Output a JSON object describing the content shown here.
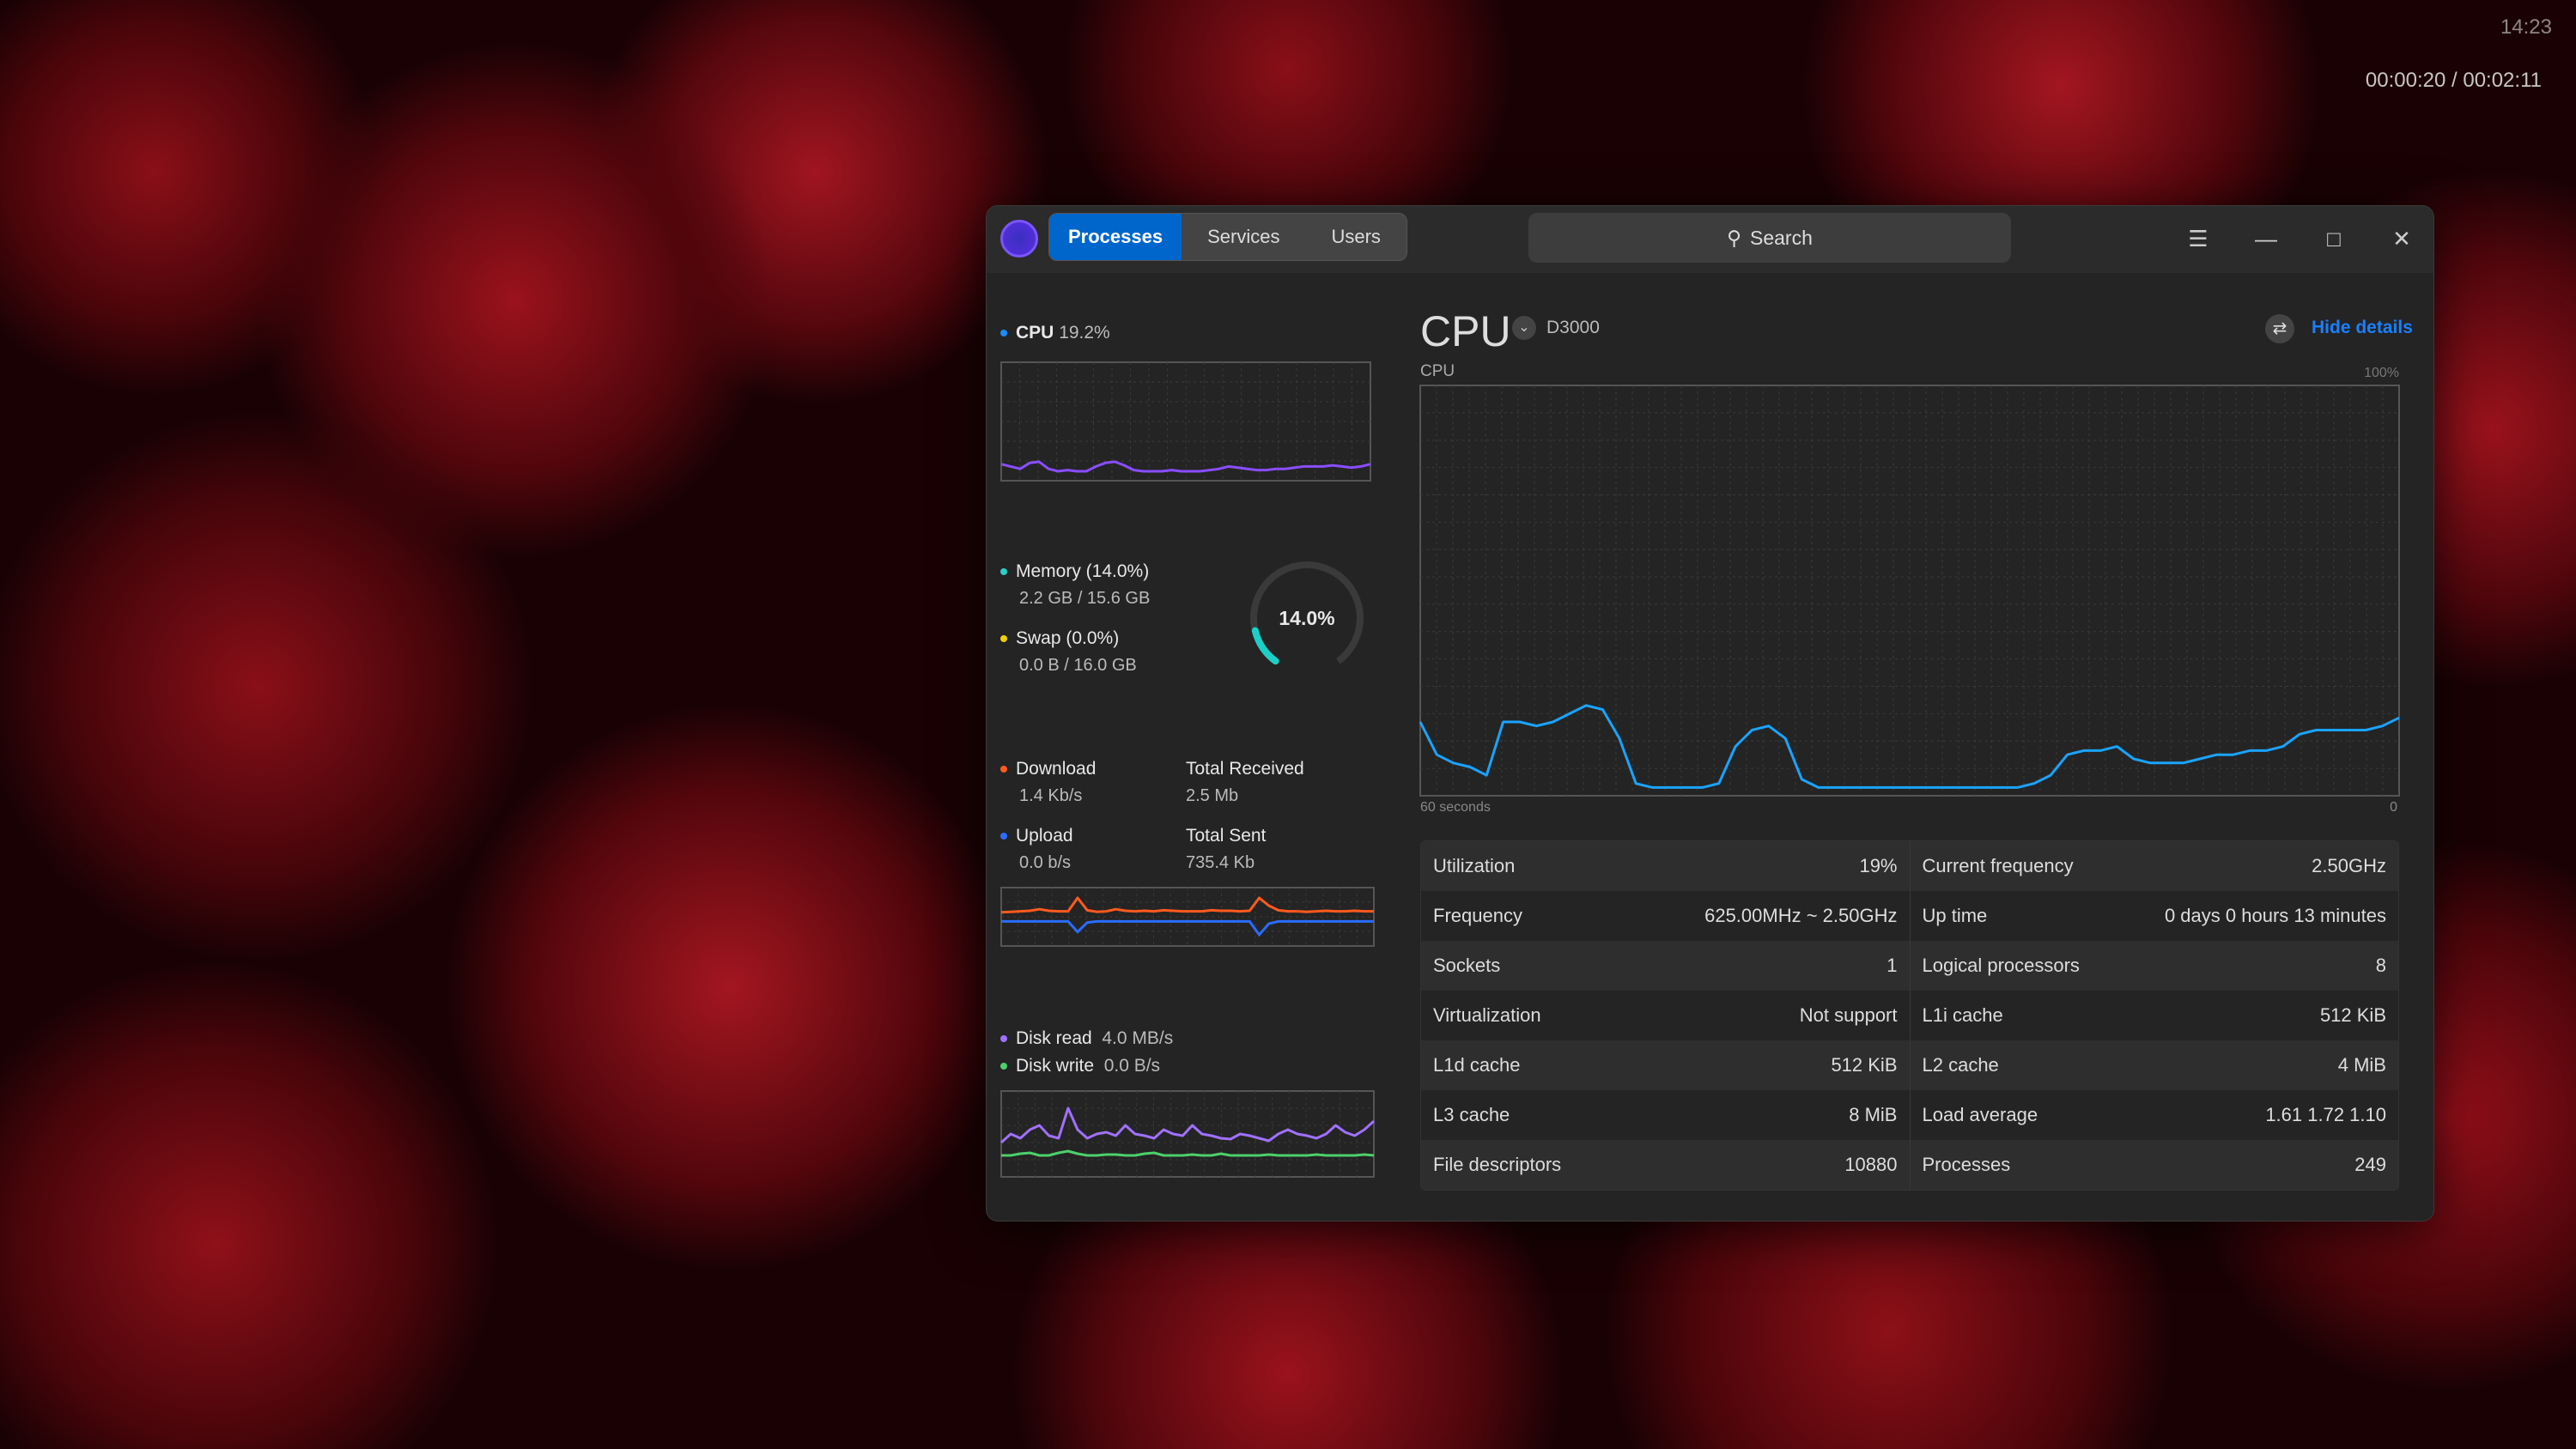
{
  "overlay": {
    "clock": "14:23",
    "playback": "00:00:20 / 00:02:11"
  },
  "tabs": [
    {
      "label": "Processes"
    },
    {
      "label": "Services"
    },
    {
      "label": "Users"
    }
  ],
  "search": {
    "placeholder": "Search"
  },
  "left": {
    "cpu": {
      "label": "CPU",
      "value": "19.2%",
      "series": [
        14,
        12,
        10,
        15,
        16,
        10,
        8,
        9,
        8,
        8,
        12,
        15,
        16,
        13,
        9,
        8,
        8,
        8,
        9,
        8,
        8,
        8,
        9,
        10,
        12,
        11,
        10,
        9,
        9,
        10,
        10,
        11,
        12,
        12,
        12,
        13,
        12,
        11,
        12,
        14
      ]
    },
    "memory": {
      "label": "Memory (14.0%)",
      "detail": "2.2 GB / 15.6 GB",
      "percent": 14.0,
      "ring_label": "14.0%"
    },
    "swap": {
      "label": "Swap (0.0%)",
      "detail": "0.0 B / 16.0 GB"
    },
    "download": {
      "label": "Download",
      "value": "1.4 Kb/s",
      "total_label": "Total Received",
      "total": "2.5 Mb"
    },
    "upload": {
      "label": "Upload",
      "value": "0.0 b/s",
      "total_label": "Total Sent",
      "total": "735.4 Kb"
    },
    "net_down": [
      2,
      3,
      4,
      5,
      8,
      5,
      4,
      4,
      30,
      6,
      3,
      4,
      8,
      5,
      4,
      5,
      4,
      6,
      5,
      4,
      4,
      4,
      6,
      5,
      5,
      4,
      5,
      30,
      15,
      6,
      4,
      4,
      3,
      4,
      5,
      4,
      4,
      5,
      4,
      4
    ],
    "net_up": [
      2,
      2,
      2,
      2,
      2,
      2,
      2,
      2,
      20,
      4,
      2,
      2,
      2,
      2,
      2,
      2,
      2,
      2,
      2,
      2,
      2,
      2,
      2,
      2,
      2,
      2,
      2,
      25,
      6,
      2,
      2,
      2,
      2,
      2,
      2,
      2,
      2,
      2,
      2,
      2
    ],
    "disk": {
      "read_label": "Disk read",
      "read": "4.0 MB/s",
      "write_label": "Disk write",
      "write": "0.0 B/s"
    },
    "disk_read": [
      40,
      50,
      45,
      55,
      60,
      48,
      45,
      80,
      55,
      45,
      50,
      52,
      48,
      60,
      50,
      48,
      45,
      55,
      50,
      48,
      60,
      50,
      48,
      45,
      44,
      50,
      48,
      45,
      42,
      50,
      55,
      50,
      48,
      45,
      50,
      60,
      52,
      48,
      55,
      65
    ],
    "disk_write": [
      25,
      25,
      27,
      28,
      25,
      25,
      28,
      30,
      27,
      25,
      25,
      26,
      26,
      25,
      25,
      27,
      28,
      25,
      25,
      25,
      26,
      25,
      25,
      27,
      25,
      25,
      25,
      25,
      26,
      25,
      25,
      25,
      25,
      26,
      25,
      25,
      25,
      25,
      26,
      25
    ]
  },
  "main": {
    "title": "CPU",
    "device": "D3000",
    "hide_details": "Hide details",
    "chart_label": "CPU",
    "max_label": "100%",
    "x_left": "60 seconds",
    "x_right": "0",
    "series": [
      18,
      10,
      8,
      7,
      5,
      18,
      18,
      17,
      18,
      20,
      22,
      21,
      14,
      3,
      2,
      2,
      2,
      2,
      3,
      12,
      16,
      17,
      14,
      4,
      2,
      2,
      2,
      2,
      2,
      2,
      2,
      2,
      2,
      2,
      2,
      2,
      2,
      3,
      5,
      10,
      11,
      11,
      12,
      9,
      8,
      8,
      8,
      9,
      10,
      10,
      11,
      11,
      12,
      15,
      16,
      16,
      16,
      16,
      17,
      19
    ],
    "color": "#1aa3ff",
    "stats": [
      [
        [
          "Utilization",
          "19%"
        ],
        [
          "Current frequency",
          "2.50GHz"
        ]
      ],
      [
        [
          "Frequency",
          "625.00MHz ~ 2.50GHz"
        ],
        [
          "Up time",
          "0 days 0 hours 13 minutes"
        ]
      ],
      [
        [
          "Sockets",
          "1"
        ],
        [
          "Logical processors",
          "8"
        ]
      ],
      [
        [
          "Virtualization",
          "Not support"
        ],
        [
          "L1i cache",
          "512 KiB"
        ]
      ],
      [
        [
          "L1d cache",
          "512 KiB"
        ],
        [
          "L2 cache",
          "4 MiB"
        ]
      ],
      [
        [
          "L3 cache",
          "8 MiB"
        ],
        [
          "Load average",
          "1.61 1.72 1.10"
        ]
      ],
      [
        [
          "File descriptors",
          "10880"
        ],
        [
          "Processes",
          "249"
        ]
      ]
    ]
  }
}
